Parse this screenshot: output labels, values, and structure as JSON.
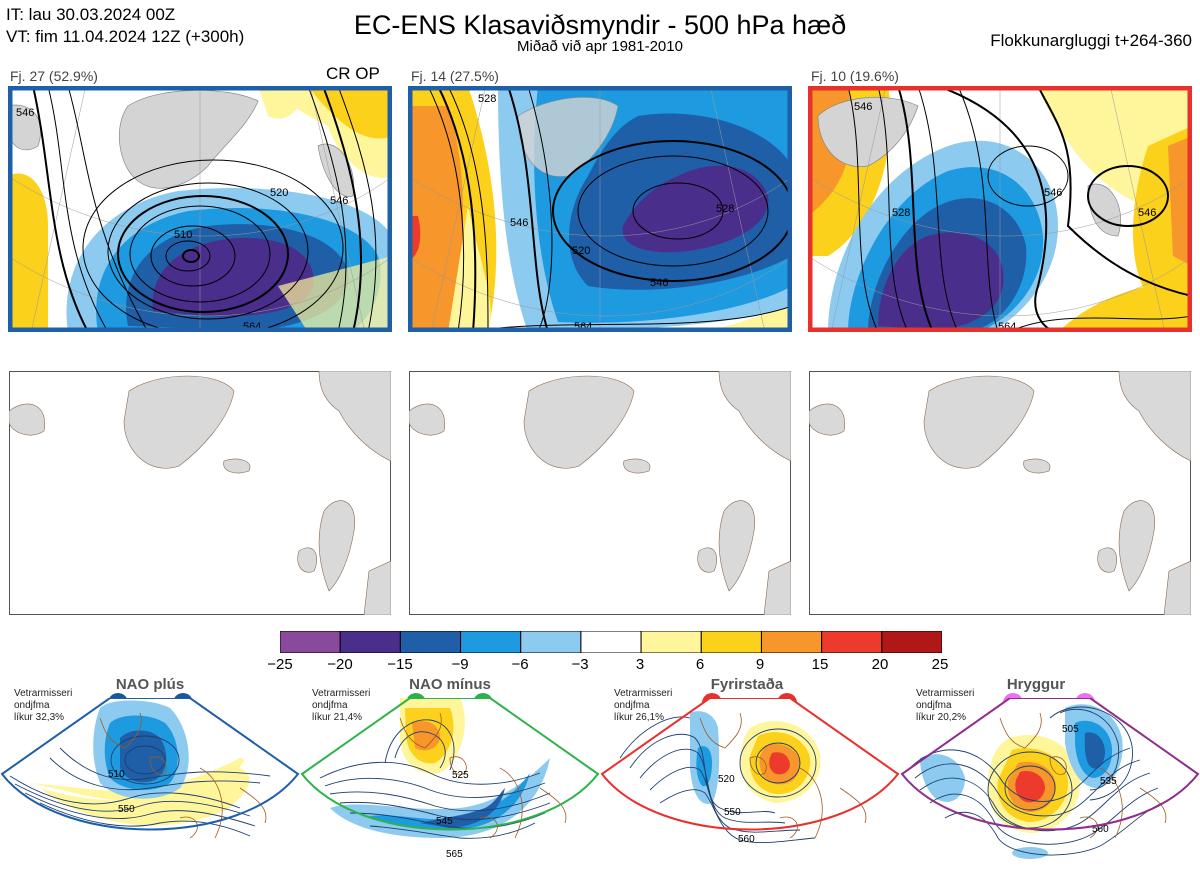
{
  "header": {
    "it_line": "IT: lau 30.03.2024 00Z",
    "vt_line": "VT: fim 11.04.2024 12Z  (+300h)",
    "title": "EC-ENS Klasaviðsmyndir - 500 hPa hæð",
    "subtitle": "Miðað við apr 1981-2010",
    "window": "Flokkunargluggi t+264-360"
  },
  "panels": [
    {
      "label": "Fj. 27 (52.9%)",
      "tag": "CR OP",
      "border": "#1f5fa8",
      "contours": [
        "546",
        "520",
        "510",
        "546",
        "564"
      ]
    },
    {
      "label": "Fj. 14 (27.5%)",
      "tag": "",
      "border": "#1f5fa8",
      "contours": [
        "528",
        "546",
        "520",
        "528",
        "546",
        "564"
      ]
    },
    {
      "label": "Fj. 10 (19.6%)",
      "tag": "",
      "border": "#e8302c",
      "contours": [
        "546",
        "528",
        "546",
        "546",
        "564"
      ]
    }
  ],
  "colorbar": {
    "ticks": [
      "−25",
      "−20",
      "−15",
      "−9",
      "−6",
      "−3",
      "3",
      "6",
      "9",
      "15",
      "20",
      "25"
    ],
    "colors": [
      "#8a4a9c",
      "#4a2e8c",
      "#1f5fa8",
      "#1e9ae0",
      "#8ccaf0",
      "#ffffff",
      "#fff59a",
      "#fcd11c",
      "#f7962a",
      "#ec3a2c",
      "#b01818"
    ]
  },
  "regimes": [
    {
      "name": "NAO plús",
      "info": [
        "Vetrarmisseri",
        "ondjfma",
        "líkur 32,3%"
      ],
      "border": "#1f5fa8",
      "dot": "#1657a3",
      "contours": [
        "510",
        "550"
      ]
    },
    {
      "name": "NAO mínus",
      "info": [
        "Vetrarmisseri",
        "ondjfma",
        "líkur 21,4%"
      ],
      "border": "#2db34a",
      "dot": "#29b14a",
      "contours": [
        "525",
        "545",
        "565"
      ]
    },
    {
      "name": "Fyrirstaða",
      "info": [
        "Vetrarmisseri",
        "ondjfma",
        "líkur 26,1%"
      ],
      "border": "#e8302c",
      "dot": "#e8302c",
      "contours": [
        "520",
        "550",
        "560"
      ]
    },
    {
      "name": "Hryggur",
      "info": [
        "Vetrarmisseri",
        "ondjfma",
        "líkur 20,2%"
      ],
      "border": "#8e2e8e",
      "dot": "#ee6fee",
      "contours": [
        "505",
        "535",
        "560"
      ]
    }
  ]
}
